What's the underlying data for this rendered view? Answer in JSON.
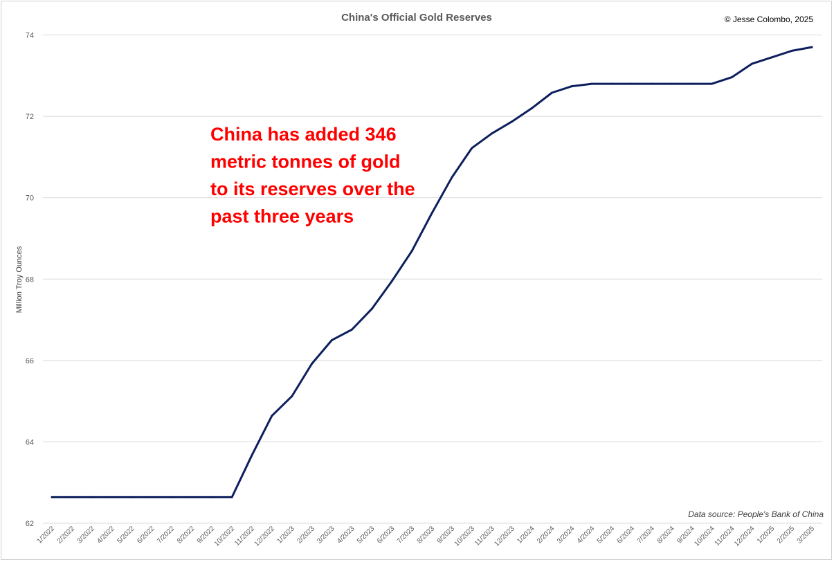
{
  "chart_data": {
    "type": "line",
    "title": "China's Official Gold Reserves",
    "copyright": "© Jesse Colombo, 2025",
    "source": "Data source: People's Bank of China",
    "ylabel": "Million Troy Ounces",
    "xlabel": "",
    "ylim": [
      62,
      74.5
    ],
    "yticks": [
      62,
      64,
      66,
      68,
      70,
      72,
      74
    ],
    "grid": true,
    "annotation": [
      "China has added 346",
      "metric tonnes of gold",
      "to its reserves over the",
      "past three years"
    ],
    "categories": [
      "1/2022",
      "2/2022",
      "3/2022",
      "4/2022",
      "5/2022",
      "6/2022",
      "7/2022",
      "8/2022",
      "9/2022",
      "10/2022",
      "11/2022",
      "12/2022",
      "1/2023",
      "2/2023",
      "3/2023",
      "4/2023",
      "5/2023",
      "6/2023",
      "7/2023",
      "8/2023",
      "9/2023",
      "10/2023",
      "11/2023",
      "12/2023",
      "1/2024",
      "2/2024",
      "3/2024",
      "4/2024",
      "5/2024",
      "6/2024",
      "7/2024",
      "8/2024",
      "9/2024",
      "10/2024",
      "11/2024",
      "12/2024",
      "1/2025",
      "2/2025",
      "3/2025"
    ],
    "series": [
      {
        "values": [
          62.64,
          62.64,
          62.64,
          62.64,
          62.64,
          62.64,
          62.64,
          62.64,
          62.64,
          62.64,
          63.67,
          64.64,
          65.12,
          65.92,
          66.5,
          66.76,
          67.27,
          67.95,
          68.69,
          69.62,
          70.5,
          71.22,
          71.58,
          71.87,
          72.2,
          72.58,
          72.74,
          72.8,
          72.8,
          72.8,
          72.8,
          72.8,
          72.8,
          72.8,
          72.96,
          73.29,
          73.45,
          73.61,
          73.7
        ],
        "color": "#0d1f5c"
      }
    ]
  }
}
